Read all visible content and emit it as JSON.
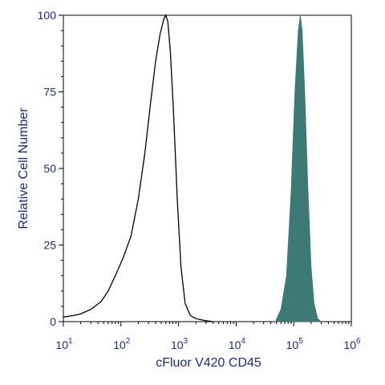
{
  "chart_data": {
    "type": "area",
    "title": "",
    "xlabel": "cFluor V420 CD45",
    "ylabel": "Relative Cell Number",
    "x_scale": "log",
    "xlim": [
      10,
      1000000
    ],
    "ylim": [
      0,
      100
    ],
    "x_tick_labels": [
      {
        "base": "10",
        "exp": "1",
        "value": 10
      },
      {
        "base": "10",
        "exp": "2",
        "value": 100
      },
      {
        "base": "10",
        "exp": "3",
        "value": 1000
      },
      {
        "base": "10",
        "exp": "4",
        "value": 10000
      },
      {
        "base": "10",
        "exp": "5",
        "value": 100000
      },
      {
        "base": "10",
        "exp": "6",
        "value": 1000000
      }
    ],
    "y_ticks": [
      0,
      25,
      50,
      75,
      100
    ],
    "y_tick_labels": [
      "0",
      "25",
      "50",
      "75",
      "100"
    ],
    "grid": false,
    "series": [
      {
        "style": "outline",
        "color": "#000000",
        "points": [
          [
            10,
            1.5
          ],
          [
            15,
            2
          ],
          [
            20,
            2.5
          ],
          [
            30,
            4
          ],
          [
            45,
            6.5
          ],
          [
            60,
            10
          ],
          [
            80,
            15
          ],
          [
            110,
            21
          ],
          [
            150,
            28
          ],
          [
            200,
            40
          ],
          [
            260,
            55
          ],
          [
            320,
            70
          ],
          [
            400,
            85
          ],
          [
            480,
            94
          ],
          [
            560,
            99
          ],
          [
            600,
            100
          ],
          [
            650,
            98
          ],
          [
            720,
            88
          ],
          [
            820,
            68
          ],
          [
            950,
            40
          ],
          [
            1100,
            18
          ],
          [
            1300,
            6
          ],
          [
            1600,
            2
          ],
          [
            2000,
            1
          ],
          [
            3000,
            0.3
          ],
          [
            4000,
            0
          ]
        ]
      },
      {
        "style": "filled",
        "color": "#3d7a76",
        "points": [
          [
            48000,
            0
          ],
          [
            60000,
            4
          ],
          [
            75000,
            15
          ],
          [
            90000,
            42
          ],
          [
            105000,
            75
          ],
          [
            120000,
            95
          ],
          [
            130000,
            100
          ],
          [
            140000,
            95
          ],
          [
            155000,
            75
          ],
          [
            175000,
            45
          ],
          [
            200000,
            18
          ],
          [
            225000,
            6
          ],
          [
            260000,
            1
          ],
          [
            300000,
            0
          ]
        ]
      }
    ]
  }
}
